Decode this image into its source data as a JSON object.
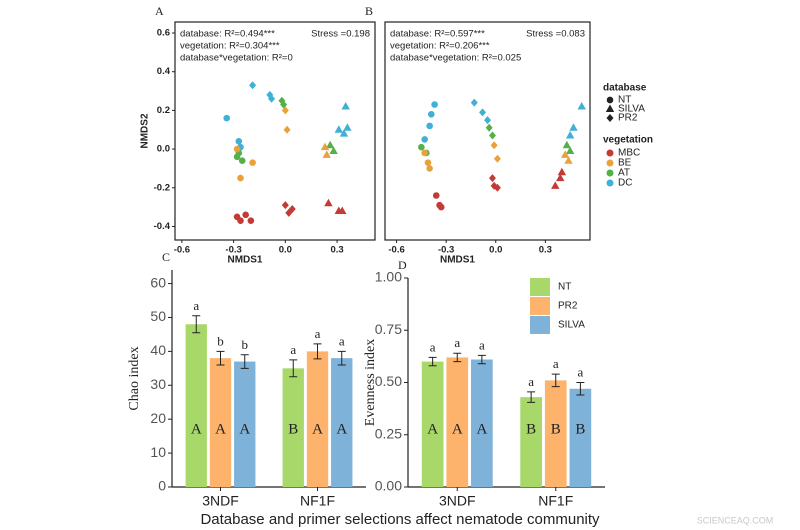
{
  "legend": {
    "database": {
      "title": "database",
      "items": [
        {
          "label": "NT",
          "shape": "circle"
        },
        {
          "label": "SILVA",
          "shape": "triangle"
        },
        {
          "label": "PR2",
          "shape": "diamond"
        }
      ]
    },
    "vegetation": {
      "title": "vegetation",
      "items": [
        {
          "label": "MBC",
          "color": "#c43a35"
        },
        {
          "label": "BE",
          "color": "#e9a23b"
        },
        {
          "label": "AT",
          "color": "#56b04a"
        },
        {
          "label": "DC",
          "color": "#3fb0d6"
        }
      ]
    }
  },
  "caption": "Database and primer selections affect nematode community",
  "watermark": "SCIENCEAQ.COM",
  "chart_data": [
    {
      "type": "scatter",
      "panel": "A",
      "x_label": "NMDS1",
      "y_label": "NMDS2",
      "annotations": [
        "database: R²=0.494***",
        "vegetation: R²=0.304***",
        "database*vegetation: R²=0"
      ],
      "stress": "Stress =0.198",
      "xlim": [
        -0.64,
        0.52
      ],
      "ylim": [
        -0.47,
        0.657
      ],
      "xticks": [
        -0.6,
        -0.3,
        {
          "value": 0,
          "label": "0.0"
        },
        0.3
      ],
      "yticks": [
        -0.4,
        -0.2,
        {
          "value": 0,
          "label": "0.0"
        },
        0.2,
        0.4,
        0.6
      ],
      "series": [
        {
          "database": "NT",
          "vegetation": "MBC",
          "x": [
            -0.28,
            -0.23,
            -0.2,
            -0.26
          ],
          "y": [
            -0.35,
            -0.34,
            -0.37,
            -0.37
          ]
        },
        {
          "database": "NT",
          "vegetation": "DC",
          "x": [
            -0.34,
            -0.27,
            -0.26
          ],
          "y": [
            0.16,
            0.04,
            0.01
          ]
        },
        {
          "database": "NT",
          "vegetation": "AT",
          "x": [
            -0.28,
            -0.25,
            -0.27
          ],
          "y": [
            -0.04,
            -0.06,
            -0.02
          ]
        },
        {
          "database": "NT",
          "vegetation": "BE",
          "x": [
            -0.28,
            -0.26,
            -0.19
          ],
          "y": [
            0.0,
            -0.15,
            -0.07
          ]
        },
        {
          "database": "PR2",
          "vegetation": "DC",
          "x": [
            -0.19,
            -0.09,
            -0.08
          ],
          "y": [
            0.33,
            0.28,
            0.26
          ]
        },
        {
          "database": "PR2",
          "vegetation": "AT",
          "x": [
            -0.02,
            -0.01
          ],
          "y": [
            0.25,
            0.23
          ]
        },
        {
          "database": "PR2",
          "vegetation": "BE",
          "x": [
            0.0,
            0.01
          ],
          "y": [
            0.2,
            0.1
          ]
        },
        {
          "database": "PR2",
          "vegetation": "MBC",
          "x": [
            0.0,
            0.04,
            0.02
          ],
          "y": [
            -0.29,
            -0.31,
            -0.33
          ]
        },
        {
          "database": "SILVA",
          "vegetation": "DC",
          "x": [
            0.35,
            0.31,
            0.34,
            0.36
          ],
          "y": [
            0.22,
            0.1,
            0.08,
            0.11
          ]
        },
        {
          "database": "SILVA",
          "vegetation": "AT",
          "x": [
            0.26,
            0.28
          ],
          "y": [
            0.02,
            -0.01
          ]
        },
        {
          "database": "SILVA",
          "vegetation": "BE",
          "x": [
            0.23,
            0.24
          ],
          "y": [
            0.01,
            -0.03
          ]
        },
        {
          "database": "SILVA",
          "vegetation": "MBC",
          "x": [
            0.25,
            0.31,
            0.33
          ],
          "y": [
            -0.28,
            -0.32,
            -0.32
          ]
        }
      ]
    },
    {
      "type": "scatter",
      "panel": "B",
      "x_label": "NMDS1",
      "annotations": [
        "database: R²=0.597***",
        "vegetation: R²=0.206***",
        "database*vegetation: R²=0.025"
      ],
      "stress": "Stress =0.083",
      "xlim": [
        -0.67,
        0.57
      ],
      "ylim": [
        -0.47,
        0.657
      ],
      "xticks": [
        -0.6,
        -0.3,
        {
          "value": 0,
          "label": "0.0"
        },
        0.3
      ],
      "series": [
        {
          "database": "NT",
          "vegetation": "DC",
          "x": [
            -0.37,
            -0.39,
            -0.4,
            -0.43
          ],
          "y": [
            0.23,
            0.18,
            0.12,
            0.05
          ]
        },
        {
          "database": "NT",
          "vegetation": "AT",
          "x": [
            -0.45,
            -0.42
          ],
          "y": [
            0.01,
            -0.02
          ]
        },
        {
          "database": "NT",
          "vegetation": "BE",
          "x": [
            -0.43,
            -0.41,
            -0.4
          ],
          "y": [
            -0.02,
            -0.07,
            -0.1
          ]
        },
        {
          "database": "NT",
          "vegetation": "MBC",
          "x": [
            -0.36,
            -0.34,
            -0.33
          ],
          "y": [
            -0.24,
            -0.29,
            -0.3
          ]
        },
        {
          "database": "PR2",
          "vegetation": "DC",
          "x": [
            -0.13,
            -0.08,
            -0.05
          ],
          "y": [
            0.24,
            0.19,
            0.15
          ]
        },
        {
          "database": "PR2",
          "vegetation": "AT",
          "x": [
            -0.04,
            -0.02
          ],
          "y": [
            0.11,
            0.07
          ]
        },
        {
          "database": "PR2",
          "vegetation": "BE",
          "x": [
            -0.01,
            0.01
          ],
          "y": [
            0.02,
            -0.05
          ]
        },
        {
          "database": "PR2",
          "vegetation": "MBC",
          "x": [
            -0.02,
            -0.01,
            0.01
          ],
          "y": [
            -0.15,
            -0.19,
            -0.2
          ]
        },
        {
          "database": "SILVA",
          "vegetation": "DC",
          "x": [
            0.52,
            0.47,
            0.45
          ],
          "y": [
            0.22,
            0.11,
            0.07
          ]
        },
        {
          "database": "SILVA",
          "vegetation": "AT",
          "x": [
            0.43,
            0.45
          ],
          "y": [
            0.02,
            -0.01
          ]
        },
        {
          "database": "SILVA",
          "vegetation": "BE",
          "x": [
            0.42,
            0.44
          ],
          "y": [
            -0.03,
            -0.06
          ]
        },
        {
          "database": "SILVA",
          "vegetation": "MBC",
          "x": [
            0.36,
            0.39,
            0.4
          ],
          "y": [
            -0.19,
            -0.15,
            -0.12
          ]
        }
      ]
    },
    {
      "type": "bar",
      "panel": "C",
      "y_label": "Chao index",
      "categories": [
        "3NDF",
        "NF1F"
      ],
      "ylim": [
        0,
        64
      ],
      "yticks": [
        0,
        10,
        20,
        30,
        40,
        50,
        60
      ],
      "series": [
        {
          "color": "#a8d86a",
          "values": [
            48,
            35
          ],
          "errors": [
            2.5,
            2.5
          ],
          "group_letters": [
            "a",
            "a"
          ],
          "treatment_letters": [
            "A",
            "B"
          ]
        },
        {
          "color": "#fdb36b",
          "values": [
            38,
            40
          ],
          "errors": [
            2,
            2.2
          ],
          "group_letters": [
            "b",
            "a"
          ],
          "treatment_letters": [
            "A",
            "A"
          ]
        },
        {
          "color": "#7eb2d8",
          "values": [
            37,
            38
          ],
          "errors": [
            2,
            2
          ],
          "group_letters": [
            "b",
            "a"
          ],
          "treatment_letters": [
            "A",
            "A"
          ]
        }
      ]
    },
    {
      "type": "bar",
      "panel": "D",
      "y_label": "Evenness index",
      "categories": [
        "3NDF",
        "NF1F"
      ],
      "legend": true,
      "ylim": [
        0,
        1
      ],
      "yticks": [
        {
          "value": 0,
          "label": "0.00"
        },
        0.25,
        {
          "value": 0.5,
          "label": "0.50"
        },
        0.75,
        {
          "value": 1,
          "label": "1.00"
        }
      ],
      "series": [
        {
          "name": "NT",
          "color": "#a8d86a",
          "values": [
            0.6,
            0.43
          ],
          "errors": [
            0.02,
            0.025
          ],
          "group_letters": [
            "a",
            "a"
          ],
          "treatment_letters": [
            "A",
            "B"
          ]
        },
        {
          "name": "PR2",
          "color": "#fdb36b",
          "values": [
            0.62,
            0.51
          ],
          "errors": [
            0.02,
            0.03
          ],
          "group_letters": [
            "a",
            "a"
          ],
          "treatment_letters": [
            "A",
            "B"
          ]
        },
        {
          "name": "SILVA",
          "color": "#7eb2d8",
          "values": [
            0.61,
            0.47
          ],
          "errors": [
            0.02,
            0.03
          ],
          "group_letters": [
            "a",
            "a"
          ],
          "treatment_letters": [
            "A",
            "B"
          ]
        }
      ]
    }
  ]
}
